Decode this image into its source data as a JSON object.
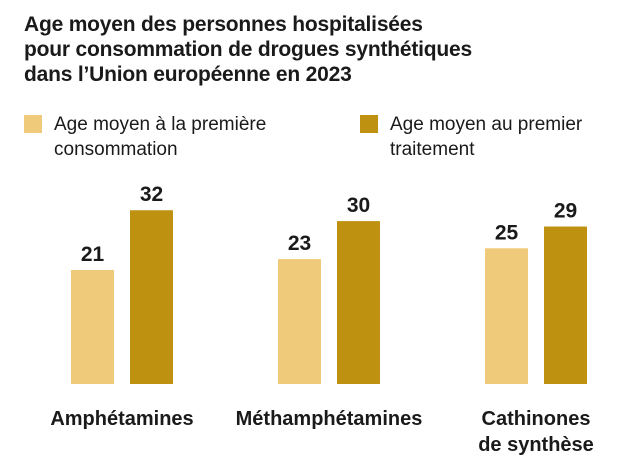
{
  "chart_data": {
    "type": "bar",
    "title_lines": [
      "Age moyen des personnes hospitalisées",
      "pour consommation de drogues synthétiques",
      "dans l’Union européenne en 2023"
    ],
    "categories": [
      [
        "Amphétamines"
      ],
      [
        "Méthamphétamines"
      ],
      [
        "Cathinones",
        "de synthèse"
      ]
    ],
    "series": [
      {
        "name": "Age moyen à la première consommation",
        "name_lines": [
          "Age moyen à la première",
          "consommation"
        ],
        "color": "#efca7a",
        "values": [
          21,
          23,
          25
        ]
      },
      {
        "name": "Age moyen au premier traitement",
        "name_lines": [
          "Age moyen au premier",
          "traitement"
        ],
        "color": "#bf9110",
        "values": [
          32,
          30,
          29
        ]
      }
    ],
    "ylim": [
      0,
      40
    ],
    "grid": false,
    "legend_position": "top"
  }
}
